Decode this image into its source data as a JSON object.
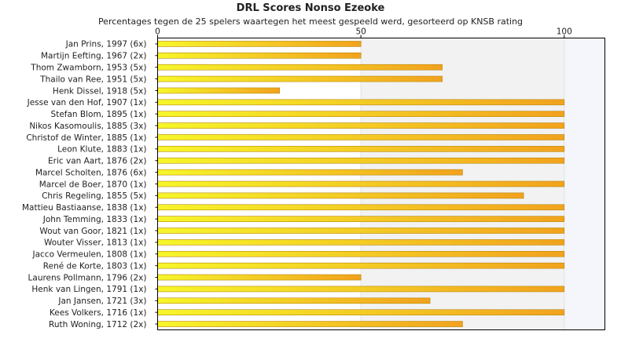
{
  "chart_data": {
    "type": "bar",
    "orientation": "horizontal",
    "title": "DRL Scores Nonso Ezeoke",
    "subtitle": "Percentages tegen de 25 spelers waartegen het meest gespeeld werd, gesorteerd op KNSB rating",
    "xlim": [
      0,
      110
    ],
    "xticks": [
      0,
      50,
      100
    ],
    "grid": false,
    "categories": [
      "Jan Prins, 1997 (6x)",
      "Martijn Eefting, 1967 (2x)",
      "Thom Zwamborn, 1953 (5x)",
      "Thailo van Ree, 1951 (5x)",
      "Henk Dissel, 1918 (5x)",
      "Jesse van den Hof, 1907 (1x)",
      "Stefan Blom, 1895 (1x)",
      "Nikos Kasomoulis, 1885 (3x)",
      "Christof de Winter, 1885 (1x)",
      "Leon Klute, 1883 (1x)",
      "Eric van Aart, 1876 (2x)",
      "Marcel Scholten, 1876 (6x)",
      "Marcel de Boer, 1870 (1x)",
      "Chris Regeling, 1855 (5x)",
      "Mattieu Bastiaanse, 1838 (1x)",
      "John Temming, 1833 (1x)",
      "Wout van Goor, 1821 (1x)",
      "Wouter Visser, 1813 (1x)",
      "Jacco Vermeulen, 1808 (1x)",
      "René de Korte, 1803 (1x)",
      "Laurens Pollmann, 1796 (2x)",
      "Henk van Lingen, 1791 (1x)",
      "Jan Jansen, 1721 (3x)",
      "Kees Volkers, 1716 (1x)",
      "Ruth Woning, 1712 (2x)"
    ],
    "values": [
      50,
      50,
      70,
      70,
      30,
      100,
      100,
      100,
      100,
      100,
      100,
      75,
      100,
      90,
      100,
      100,
      100,
      100,
      100,
      100,
      50,
      100,
      67,
      100,
      75
    ],
    "colors": {
      "bar_start": "#f6f62a",
      "bar_end": "#f2a21e",
      "bar_border": "#b8860b",
      "band_mid": "#f2f2f2",
      "band_right": "#f4f6fb",
      "axis": "#000000"
    }
  }
}
